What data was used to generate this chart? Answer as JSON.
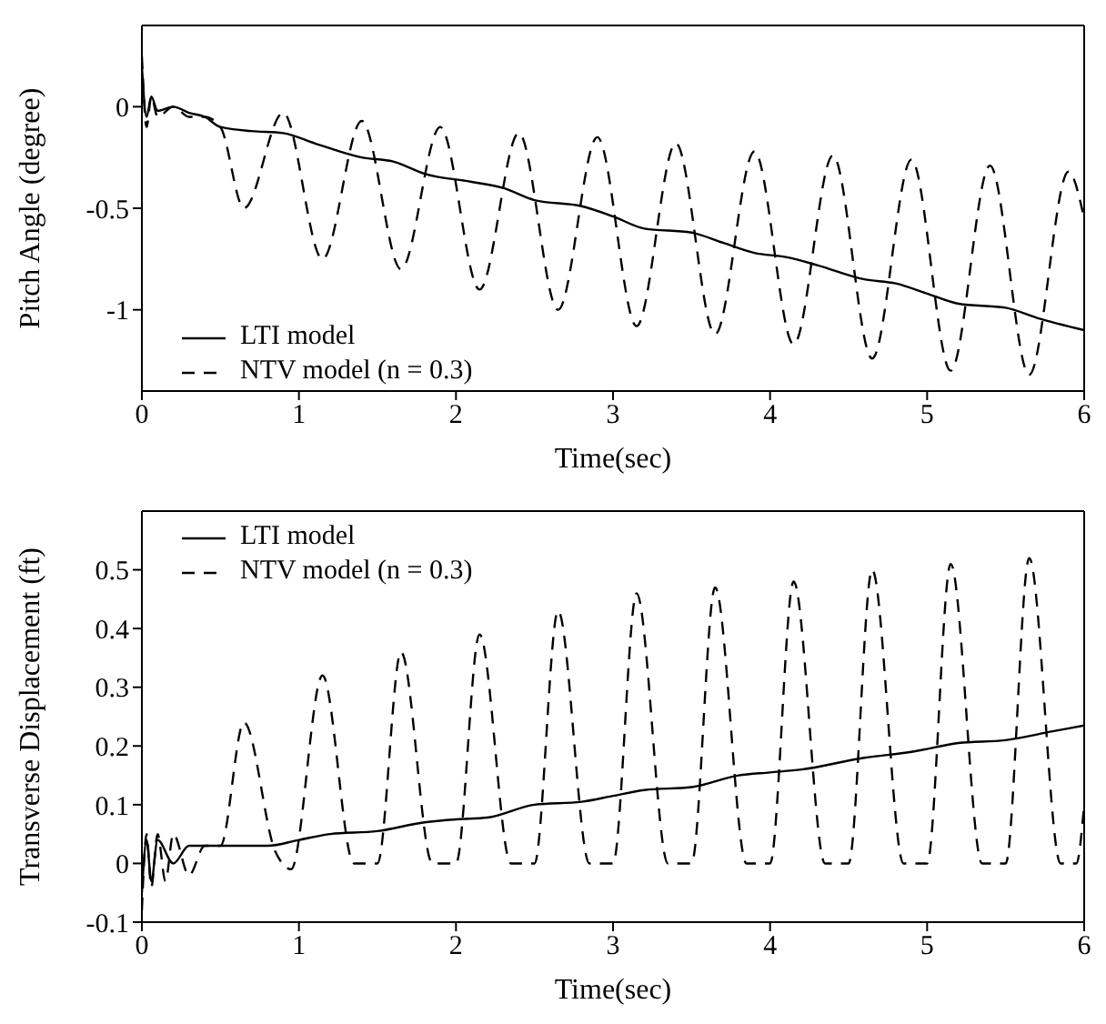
{
  "chart_data": [
    {
      "type": "line",
      "xlabel": "Time(sec)",
      "ylabel": "Pitch Angle (degree)",
      "xlim": [
        0,
        6
      ],
      "xticks": [
        0,
        1,
        2,
        3,
        4,
        5,
        6
      ],
      "ylim": [
        -1.4,
        0.4
      ],
      "yticks": [
        -1,
        -0.5,
        0
      ],
      "legend": "bottom left",
      "grid": false,
      "marker": "none",
      "series": [
        {
          "name": "LTI model",
          "color": "#000000",
          "line_style": "solid",
          "x": [
            0,
            0.03,
            0.06,
            0.1,
            0.2,
            0.3,
            0.4,
            0.5,
            0.7,
            0.9,
            1.1,
            1.4,
            1.6,
            1.8,
            2.1,
            2.3,
            2.5,
            2.8,
            3,
            3.2,
            3.5,
            3.7,
            3.9,
            4.1,
            4.3,
            4.6,
            4.8,
            5,
            5.2,
            5.5,
            5.7,
            6
          ],
          "values": [
            0.2,
            -0.05,
            0.05,
            -0.02,
            0,
            -0.03,
            -0.05,
            -0.1,
            -0.12,
            -0.13,
            -0.18,
            -0.25,
            -0.27,
            -0.33,
            -0.37,
            -0.4,
            -0.46,
            -0.49,
            -0.54,
            -0.6,
            -0.62,
            -0.67,
            -0.72,
            -0.74,
            -0.78,
            -0.85,
            -0.87,
            -0.92,
            -0.97,
            -0.99,
            -1.04,
            -1.1
          ]
        },
        {
          "name": "NTV model (n = 0.3)",
          "color": "#000000",
          "line_style": "dashed",
          "x": [
            0,
            0.03,
            0.06,
            0.1,
            0.2,
            0.3,
            0.4,
            0.5,
            0.65,
            0.9,
            1.15,
            1.4,
            1.65,
            1.9,
            2.15,
            2.4,
            2.65,
            2.9,
            3.15,
            3.4,
            3.65,
            3.9,
            4.15,
            4.4,
            4.65,
            4.9,
            5.15,
            5.4,
            5.65,
            5.9,
            6
          ],
          "values": [
            0.25,
            -0.1,
            0.05,
            -0.05,
            0,
            -0.05,
            -0.05,
            -0.1,
            -0.5,
            -0.03,
            -0.75,
            -0.07,
            -0.8,
            -0.1,
            -0.9,
            -0.13,
            -1,
            -0.15,
            -1.08,
            -0.18,
            -1.12,
            -0.22,
            -1.17,
            -0.24,
            -1.24,
            -0.26,
            -1.3,
            -0.29,
            -1.32,
            -0.32,
            -0.55
          ]
        }
      ]
    },
    {
      "type": "line",
      "xlabel": "Time(sec)",
      "ylabel": "Transverse Displacement (ft)",
      "xlim": [
        0,
        6
      ],
      "xticks": [
        0,
        1,
        2,
        3,
        4,
        5,
        6
      ],
      "ylim": [
        -0.1,
        0.6
      ],
      "yticks": [
        -0.1,
        0,
        0.1,
        0.2,
        0.3,
        0.4,
        0.5
      ],
      "legend": "top left",
      "grid": false,
      "marker": "none",
      "series": [
        {
          "name": "LTI model",
          "color": "#000000",
          "line_style": "solid",
          "x": [
            0,
            0.03,
            0.06,
            0.1,
            0.2,
            0.3,
            0.5,
            0.8,
            1,
            1.2,
            1.5,
            1.8,
            2,
            2.2,
            2.5,
            2.8,
            3,
            3.2,
            3.5,
            3.8,
            4,
            4.2,
            4.6,
            4.9,
            5.2,
            5.5,
            5.8,
            6
          ],
          "values": [
            -0.05,
            0.04,
            -0.03,
            0.04,
            0,
            0.03,
            0.03,
            0.03,
            0.04,
            0.05,
            0.055,
            0.07,
            0.075,
            0.078,
            0.1,
            0.105,
            0.115,
            0.125,
            0.13,
            0.15,
            0.155,
            0.16,
            0.18,
            0.19,
            0.205,
            0.21,
            0.225,
            0.235
          ]
        },
        {
          "name": "NTV model (n = 0.3)",
          "color": "#000000",
          "line_style": "dashed",
          "x": [
            0,
            0.03,
            0.06,
            0.1,
            0.15,
            0.2,
            0.3,
            0.4,
            0.5,
            0.65,
            0.85,
            0.95,
            1.15,
            1.35,
            1.5,
            1.65,
            1.85,
            2,
            2.15,
            2.35,
            2.5,
            2.65,
            2.85,
            3,
            3.15,
            3.35,
            3.5,
            3.65,
            3.85,
            4,
            4.15,
            4.35,
            4.5,
            4.65,
            4.85,
            5,
            5.15,
            5.35,
            5.5,
            5.65,
            5.85,
            5.95,
            6
          ],
          "values": [
            -0.08,
            0.05,
            -0.04,
            0.05,
            -0.03,
            0.05,
            -0.02,
            0.03,
            0.03,
            0.24,
            0.02,
            -0.01,
            0.32,
            0,
            0,
            0.36,
            0,
            0,
            0.39,
            0,
            0,
            0.43,
            0,
            0,
            0.46,
            0,
            0,
            0.47,
            0,
            0,
            0.48,
            0,
            0,
            0.5,
            0,
            0,
            0.51,
            0,
            0,
            0.52,
            0,
            0,
            0.1
          ]
        }
      ]
    }
  ]
}
